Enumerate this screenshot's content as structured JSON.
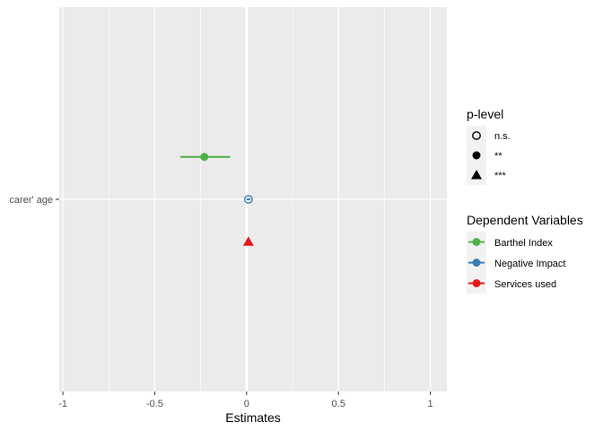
{
  "chart_data": {
    "type": "scatter",
    "xlabel": "Estimates",
    "ylabel": "",
    "xlim": [
      -1.02,
      1.09
    ],
    "x_ticks": [
      -1,
      -0.5,
      0,
      0.5,
      1
    ],
    "x_tick_labels": [
      "-1",
      "-0.5",
      "0",
      "0.5",
      "1"
    ],
    "categories": [
      "carer' age"
    ],
    "grid": true,
    "series": [
      {
        "name": "Barthel Index",
        "color": "#4daf4a",
        "category": "carer' age",
        "estimate": -0.23,
        "ci_low": -0.36,
        "ci_high": -0.09,
        "p_level": "**",
        "offset": 0.24
      },
      {
        "name": "Negative Impact",
        "color": "#377eb8",
        "category": "carer' age",
        "estimate": 0.01,
        "ci_low": 0.0,
        "ci_high": 0.02,
        "p_level": "n.s.",
        "offset": 0
      },
      {
        "name": "Services used",
        "color": "#e41a1c",
        "category": "carer' age",
        "estimate": 0.01,
        "ci_low": 0.0,
        "ci_high": 0.02,
        "p_level": "***",
        "offset": -0.24
      }
    ],
    "legends": [
      {
        "title": "p-level",
        "entries": [
          {
            "label": "n.s.",
            "shape": "open-circle"
          },
          {
            "label": "**",
            "shape": "filled-circle"
          },
          {
            "label": "***",
            "shape": "triangle"
          }
        ]
      },
      {
        "title": "Dependent Variables",
        "entries": [
          {
            "label": "Barthel Index",
            "color": "#4daf4a"
          },
          {
            "label": "Negative Impact",
            "color": "#377eb8"
          },
          {
            "label": "Services used",
            "color": "#e41a1c"
          }
        ]
      }
    ],
    "legend_position": "right",
    "panel_color": "#ebebeb"
  }
}
